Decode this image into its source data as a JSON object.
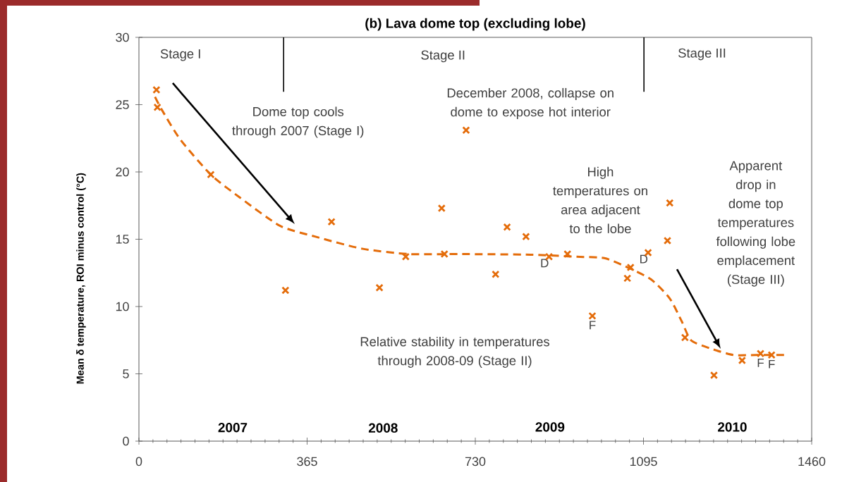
{
  "chart_data": {
    "type": "scatter",
    "title": "(b) Lava dome top (excluding lobe)",
    "ylabel": "Mean δ temperature, ROI minus control (°C)",
    "xlim": [
      0,
      1460
    ],
    "xticks": [
      0,
      365,
      730,
      1095,
      1460
    ],
    "ylim": [
      0,
      30
    ],
    "yticks": [
      0,
      5,
      10,
      15,
      20,
      25,
      30
    ],
    "series": [
      {
        "type": "line",
        "color": "#e46c0a",
        "line_style": "dashed",
        "marker": "none",
        "x": [
          30,
          50,
          90,
          156,
          219,
          306,
          382,
          484,
          586,
          700,
          850,
          950,
          1010,
          1061,
          1112,
          1152,
          1178,
          1198,
          1239,
          1290,
          1341,
          1400
        ],
        "values": [
          25.9,
          24.6,
          22.4,
          19.8,
          18.1,
          16.0,
          15.2,
          14.3,
          13.9,
          13.9,
          13.85,
          13.7,
          13.6,
          12.9,
          12.0,
          10.6,
          8.9,
          7.5,
          6.9,
          6.4,
          6.4,
          6.4
        ]
      },
      {
        "color": "#e46c0a",
        "marker": "cross",
        "x": [
          38,
          40,
          156,
          318,
          418,
          522,
          579,
          657,
          663,
          710,
          774,
          799,
          840,
          890,
          930,
          984,
          1060,
          1067,
          1105,
          1147,
          1152,
          1185,
          1248,
          1309,
          1349,
          1373
        ],
        "values": [
          26.1,
          24.8,
          19.8,
          11.2,
          16.3,
          11.4,
          13.7,
          17.3,
          13.9,
          23.1,
          12.4,
          15.9,
          15.2,
          13.7,
          13.9,
          9.3,
          12.1,
          12.9,
          14.0,
          14.9,
          17.7,
          7.7,
          4.9,
          6.0,
          6.5,
          6.4
        ]
      }
    ],
    "ref_lines": [
      {
        "axis": "x",
        "value": 314
      },
      {
        "axis": "x",
        "value": 1096
      }
    ],
    "annotations": [
      "Stage I",
      "Stage II",
      "Stage III",
      "Dome top cools through 2007 (Stage I)",
      "December 2008, collapse on dome to expose hot interior",
      "High temperatures on area adjacent to the lobe",
      "Apparent drop in dome top temperatures following lobe emplacement (Stage III)",
      "Relative stability in temperatures through 2008-09 (Stage II)",
      "2007",
      "2008",
      "2009",
      "2010",
      {
        "text": "D",
        "x": 890,
        "y": 13.7
      },
      {
        "text": "D",
        "x": 1105,
        "y": 14.0
      },
      {
        "text": "F",
        "x": 984,
        "y": 9.3
      },
      {
        "text": "F",
        "x": 1349,
        "y": 6.5
      },
      {
        "text": "F",
        "x": 1373,
        "y": 6.4
      }
    ]
  }
}
